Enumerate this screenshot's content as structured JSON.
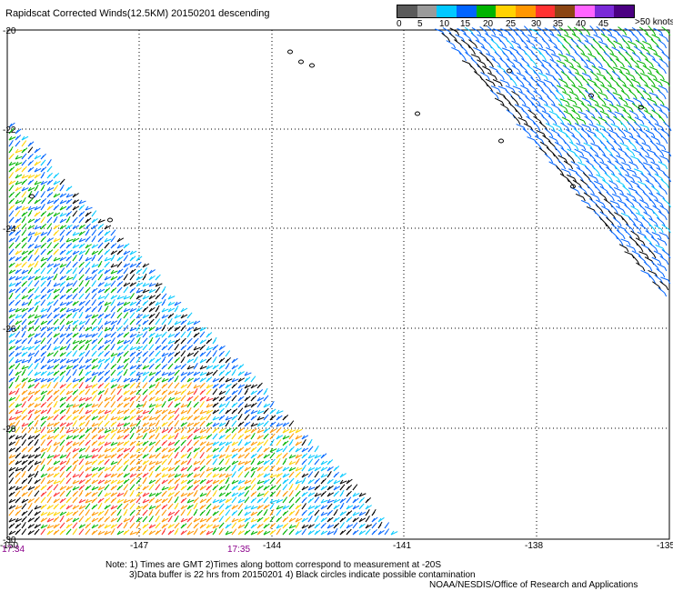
{
  "title": "Rapidscat Corrected Winds(12.5KM) 20150201 descending",
  "legend": {
    "colors": [
      "#5a5a5a",
      "#9a9a9a",
      "#00c8ff",
      "#0064ff",
      "#00b400",
      "#ffd200",
      "#ff9600",
      "#ff3232",
      "#8b4513",
      "#ff64ff",
      "#7a2ad8",
      "#4b0082"
    ],
    "ticks": [
      "0",
      "5",
      "10",
      "15",
      "20",
      "25",
      "30",
      "35",
      "40",
      "45"
    ],
    "units": ">50 knots"
  },
  "axes": {
    "lat_labels": [
      "-20",
      "-22",
      "-24",
      "-26",
      "-28",
      "-30"
    ],
    "lon_labels": [
      "-150",
      "-147",
      "-144",
      "-141",
      "-138",
      "-135"
    ]
  },
  "times": [
    "17:34",
    "17:35"
  ],
  "note_lines": [
    "Note: 1) Times are GMT 2)Times along bottom correspond to measurement at -20S",
    "3)Data buffer is 22 hrs from 20150201 4) Black circles indicate possible contamination"
  ],
  "credit": "NOAA/NESDIS/Office of Research and Applications"
}
